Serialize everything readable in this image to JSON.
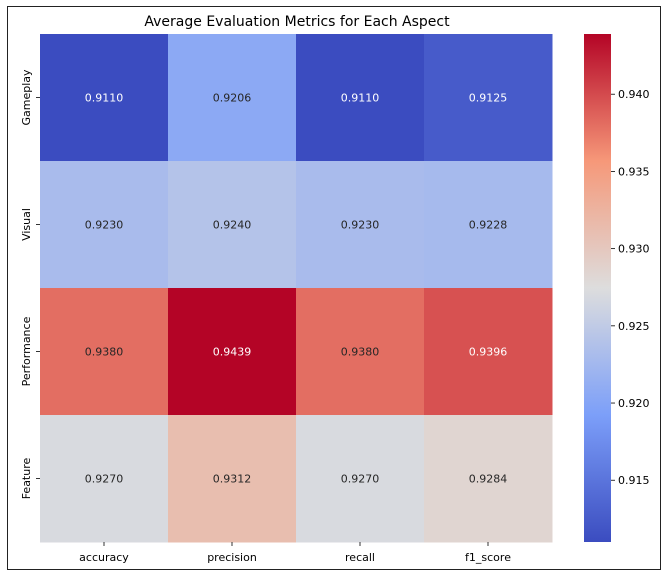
{
  "chart_data": {
    "type": "heatmap",
    "title": "Average Evaluation Metrics for Each Aspect",
    "xlabel": "",
    "ylabel": "",
    "columns": [
      "accuracy",
      "precision",
      "recall",
      "f1_score"
    ],
    "rows": [
      "Gameplay",
      "Visual",
      "Performance",
      "Feature"
    ],
    "values": [
      [
        0.911,
        0.9206,
        0.911,
        0.9125
      ],
      [
        0.923,
        0.924,
        0.923,
        0.9228
      ],
      [
        0.938,
        0.9439,
        0.938,
        0.9396
      ],
      [
        0.927,
        0.9312,
        0.927,
        0.9284
      ]
    ],
    "value_labels": [
      [
        "0.9110",
        "0.9206",
        "0.9110",
        "0.9125"
      ],
      [
        "0.9230",
        "0.9240",
        "0.9230",
        "0.9228"
      ],
      [
        "0.9380",
        "0.9439",
        "0.9380",
        "0.9396"
      ],
      [
        "0.9270",
        "0.9312",
        "0.9270",
        "0.9284"
      ]
    ],
    "colormap": "coolwarm",
    "colorbar": {
      "vmin": 0.911,
      "vmax": 0.9439,
      "ticks": [
        "0.915",
        "0.920",
        "0.925",
        "0.930",
        "0.935",
        "0.940"
      ]
    },
    "colors": {
      "low": "#3b4cc0",
      "mid": "#dddddd",
      "high": "#b40426"
    }
  }
}
